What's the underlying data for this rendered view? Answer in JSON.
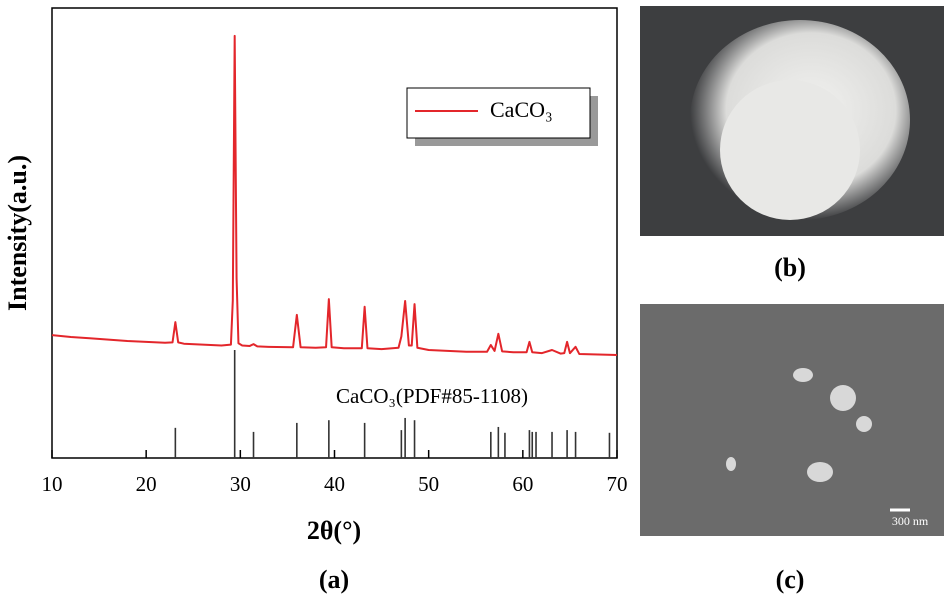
{
  "chart_data": {
    "type": "line",
    "xlabel": "2θ(°)",
    "ylabel": "Intensity(a.u.)",
    "xlim": [
      10,
      70
    ],
    "xticks": [
      10,
      20,
      30,
      40,
      50,
      60,
      70
    ],
    "ylim": [
      0,
      100
    ],
    "legend": "upper right",
    "series": [
      {
        "name": "CaCO₃",
        "color": "#e3262b",
        "x": [
          10,
          12,
          14,
          16,
          18,
          20,
          22,
          22.8,
          23.1,
          23.4,
          24,
          26,
          28,
          29.0,
          29.2,
          29.4,
          29.6,
          29.8,
          30.2,
          31.0,
          31.4,
          31.8,
          33,
          35.6,
          36.0,
          36.4,
          38,
          39.1,
          39.4,
          39.7,
          41,
          42.9,
          43.2,
          43.5,
          45,
          46.8,
          47.1,
          47.5,
          47.9,
          48.2,
          48.5,
          48.8,
          50,
          52,
          54,
          56.2,
          56.6,
          57.0,
          57.4,
          57.8,
          59,
          60.4,
          60.7,
          61.0,
          62,
          63.1,
          64,
          64.4,
          64.7,
          65.0,
          65.6,
          66.0,
          68,
          70
        ],
        "values": [
          27.3,
          26.9,
          26.6,
          26.3,
          26.0,
          25.8,
          25.6,
          25.7,
          30.2,
          25.7,
          25.4,
          25.2,
          25.0,
          25.2,
          35,
          93.8,
          40,
          25.5,
          25.0,
          24.9,
          25.3,
          24.8,
          24.7,
          24.6,
          31.8,
          24.6,
          24.5,
          24.6,
          35.3,
          24.6,
          24.4,
          24.4,
          33.6,
          24.4,
          24.2,
          24.5,
          27,
          34.9,
          25,
          25,
          34.2,
          24.5,
          24.0,
          23.8,
          23.6,
          23.6,
          25.1,
          23.8,
          27.6,
          23.7,
          23.5,
          23.5,
          25.8,
          23.5,
          23.3,
          24.0,
          23.2,
          23.3,
          25.8,
          23.3,
          24.7,
          23.1,
          23.0,
          22.9
        ]
      }
    ],
    "reference": {
      "label": "CaCO₃(PDF#85-1108)",
      "color": "#333333",
      "x": [
        23.1,
        29.4,
        31.4,
        36.0,
        39.4,
        43.2,
        47.1,
        47.5,
        48.5,
        56.6,
        57.4,
        58.1,
        60.7,
        61.0,
        61.4,
        63.1,
        64.7,
        65.6,
        69.2
      ],
      "values": [
        6.7,
        24,
        5.8,
        7.8,
        8.4,
        7.8,
        6.2,
        8.9,
        8.4,
        5.8,
        6.9,
        5.6,
        6.2,
        5.8,
        5.8,
        5.8,
        6.2,
        5.8,
        5.6
      ]
    }
  },
  "panel_labels": [
    "(a)",
    "(b)",
    "(c)"
  ],
  "scale_bar": "300 nm"
}
